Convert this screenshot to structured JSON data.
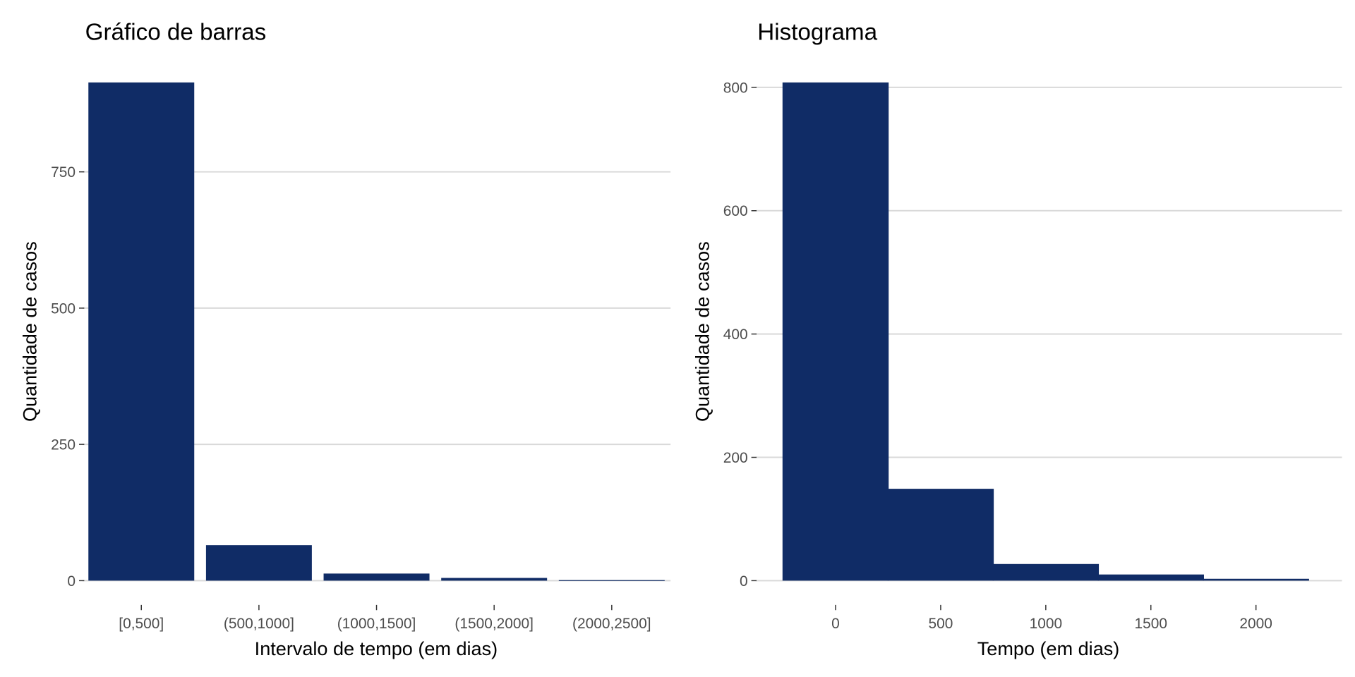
{
  "colors": {
    "bar": "#102C66",
    "grid": "#D9D9D9"
  },
  "chart_data": [
    {
      "type": "bar",
      "title": "Gráfico de barras",
      "xlabel": "Intervalo de tempo (em dias)",
      "ylabel": "Quantidade de casos",
      "categories": [
        "[0,500]",
        "(500,1000]",
        "(1000,1500]",
        "(1500,2000]",
        "(2000,2500]"
      ],
      "values": [
        914,
        65,
        13,
        5,
        1
      ],
      "yticks": [
        0,
        250,
        500,
        750
      ],
      "ytick_labels": [
        "0",
        "250",
        "500",
        "750"
      ],
      "ylim": [
        0,
        914
      ],
      "grid": true
    },
    {
      "type": "bar",
      "subtype": "histogram",
      "title": "Histograma",
      "xlabel": "Tempo (em dias)",
      "ylabel": "Quantidade de casos",
      "bin_centers": [
        0,
        500,
        1000,
        1500,
        2000
      ],
      "bin_width": 505,
      "values": [
        808,
        149,
        27,
        10,
        3
      ],
      "xticks": [
        0,
        500,
        1000,
        1500,
        2000
      ],
      "xtick_labels": [
        "0",
        "500",
        "1000",
        "1500",
        "2000"
      ],
      "yticks": [
        0,
        200,
        400,
        600,
        800
      ],
      "ytick_labels": [
        "0",
        "200",
        "400",
        "600",
        "800"
      ],
      "xlim": [
        -250,
        2280
      ],
      "ylim": [
        0,
        808
      ],
      "grid": true
    }
  ]
}
